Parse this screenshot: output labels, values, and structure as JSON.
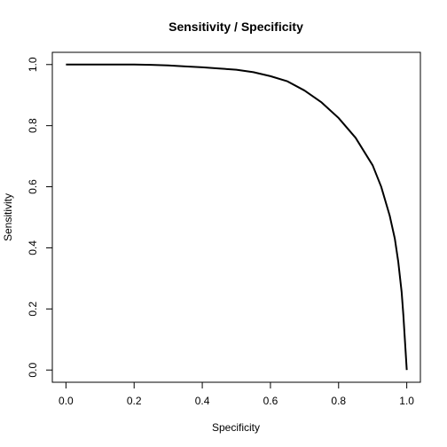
{
  "chart_data": {
    "type": "line",
    "title": "Sensitivity / Specificity",
    "xlabel": "Specificity",
    "ylabel": "Sensitivity",
    "xlim": [
      0.0,
      1.0
    ],
    "ylim": [
      0.0,
      1.0
    ],
    "x_ticks": [
      "0.0",
      "0.2",
      "0.4",
      "0.6",
      "0.8",
      "1.0"
    ],
    "y_ticks": [
      "0.0",
      "0.2",
      "0.4",
      "0.6",
      "0.8",
      "1.0"
    ],
    "grid": false,
    "legend": "none",
    "line_color": "#000000",
    "series": [
      {
        "x": [
          0.0,
          0.1,
          0.2,
          0.25,
          0.3,
          0.35,
          0.4,
          0.45,
          0.5,
          0.55,
          0.6,
          0.65,
          0.7,
          0.75,
          0.8,
          0.85,
          0.9,
          0.925,
          0.95,
          0.965,
          0.975,
          0.985,
          0.99,
          0.995,
          1.0
        ],
        "y": [
          1.0,
          1.0,
          1.0,
          0.999,
          0.997,
          0.994,
          0.991,
          0.987,
          0.983,
          0.975,
          0.962,
          0.945,
          0.915,
          0.876,
          0.825,
          0.76,
          0.67,
          0.6,
          0.505,
          0.43,
          0.355,
          0.255,
          0.18,
          0.09,
          0.0
        ]
      }
    ]
  }
}
